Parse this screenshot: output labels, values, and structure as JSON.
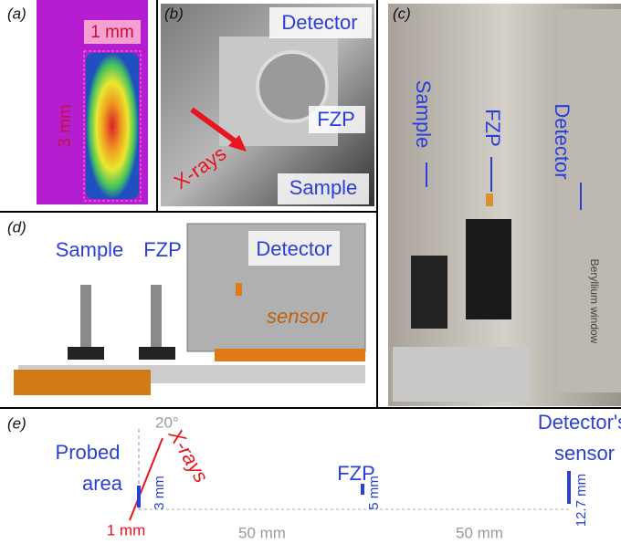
{
  "panels": {
    "a": {
      "label": "(a)",
      "width_label": "1 mm",
      "height_label": "3 mm"
    },
    "b": {
      "label": "(b)",
      "detector": "Detector",
      "fzp": "FZP",
      "xrays": "X-rays",
      "sample": "Sample"
    },
    "c": {
      "label": "(c)",
      "sample": "Sample",
      "fzp": "FZP",
      "detector": "Detector",
      "window": "Beryllium window"
    },
    "d": {
      "label": "(d)",
      "sample": "Sample",
      "fzp": "FZP",
      "detector": "Detector",
      "sensor": "sensor"
    },
    "e": {
      "label": "(e)",
      "angle": "20°",
      "probed": "Probed",
      "area": "area",
      "xrays": "X-rays",
      "spot_height": "3 mm",
      "spot_width": "1 mm",
      "fzp": "FZP",
      "fzp_size": "5 mm",
      "distance_1": "50 mm",
      "distance_2": "50 mm",
      "detector_line1": "Detector's",
      "detector_line2": "sensor",
      "sensor_size": "12.7 mm"
    }
  }
}
